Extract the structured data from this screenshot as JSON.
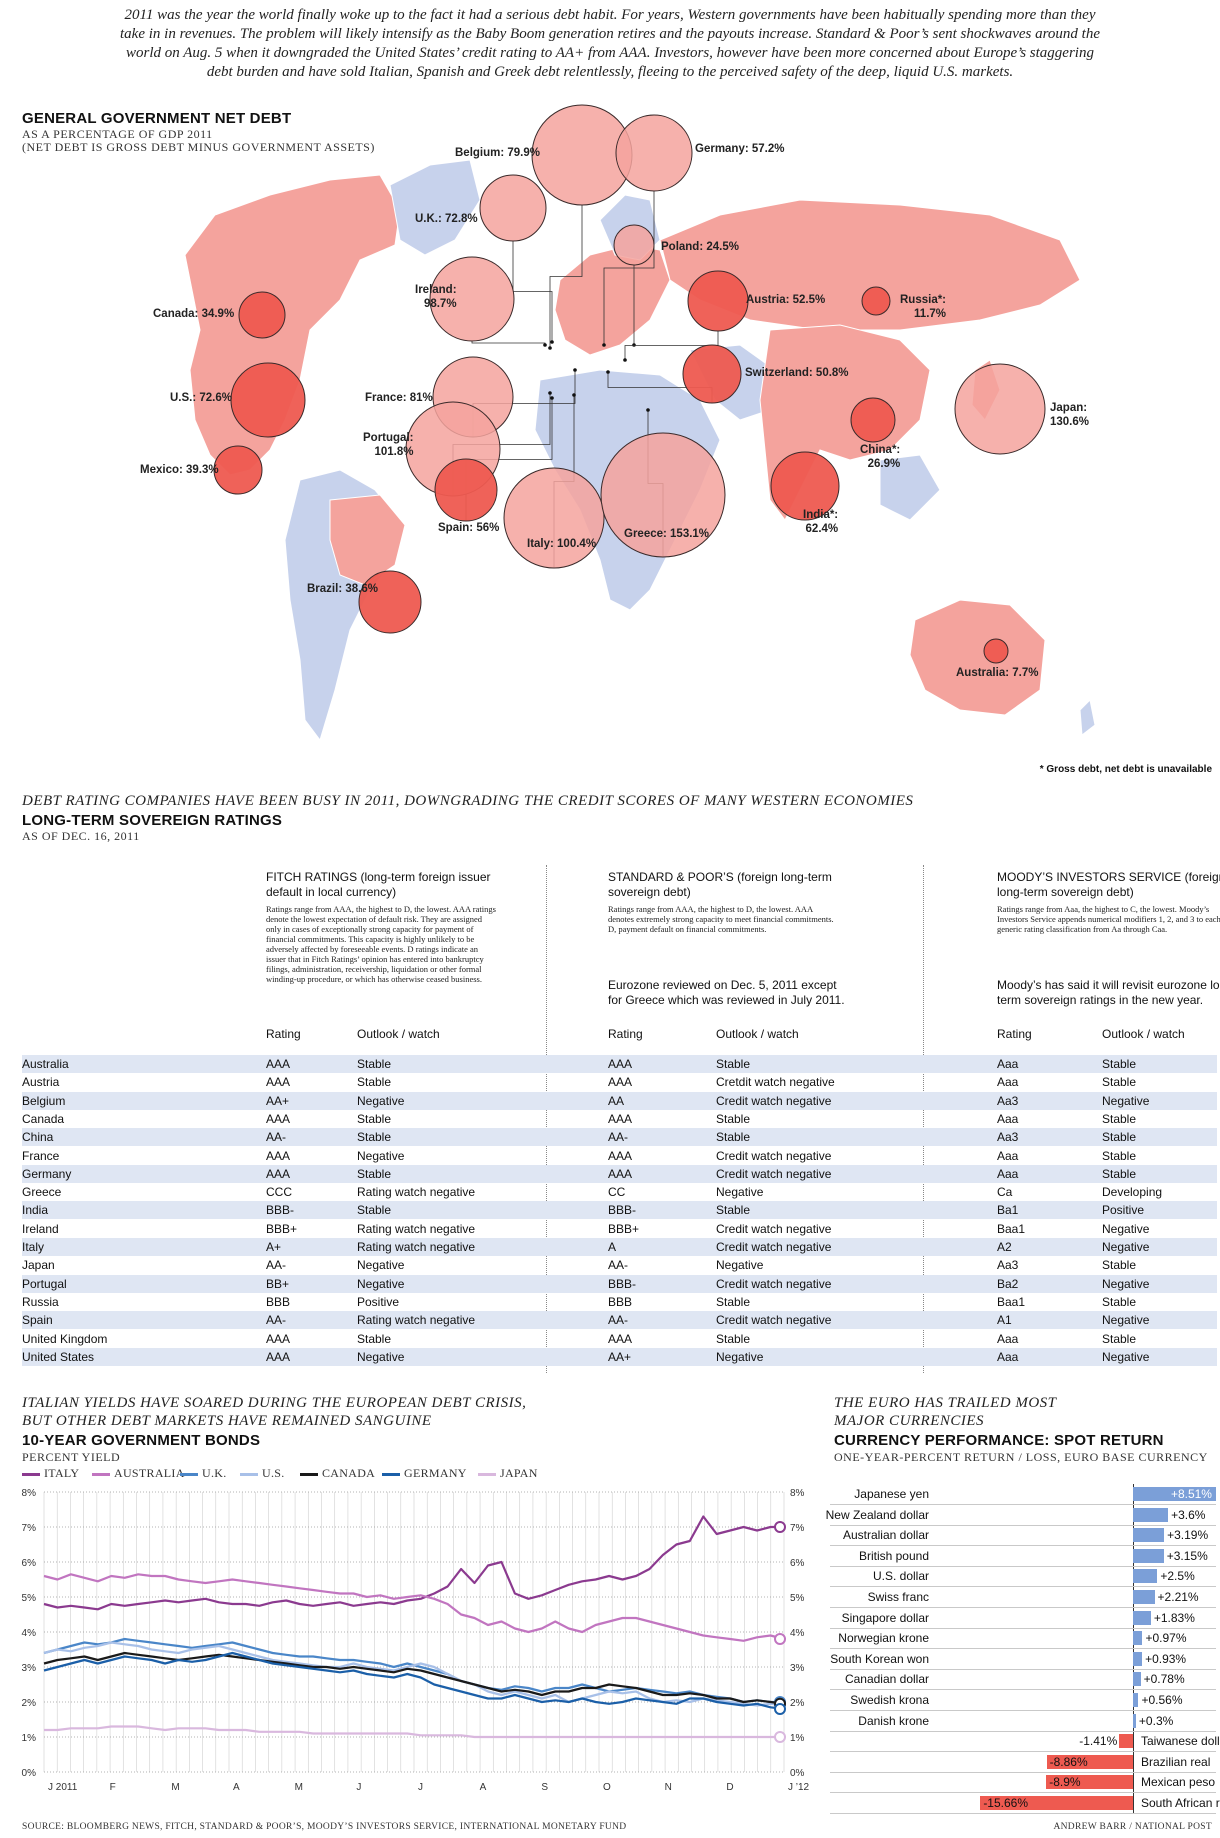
{
  "intro": "2011 was the year the world finally woke up to the fact it had a serious debt habit. For years, Western governments have been habitually spending more than they take in in revenues. The problem will likely intensify as the Baby Boom generation retires and the payouts increase. Standard & Poor’s sent shockwaves around the world on Aug. 5 when it downgraded the United States’ credit rating to AA+ from AAA. Investors, however have been more concerned about Europe’s staggering debt burden and have sold Italian, Spanish and Greek debt relentlessly, fleeing to the perceived safety of the deep, liquid U.S. markets.",
  "map": {
    "title": "GENERAL GOVERNMENT NET DEBT",
    "subtitle1": "AS A PERCENTAGE OF GDP 2011",
    "subtitle2": "(NET DEBT IS GROSS DEBT MINUS GOVERNMENT ASSETS)",
    "footnote": "* Gross debt, net debt is unavailable",
    "colors": {
      "bubble": "#f4a39d",
      "bubble_dark": "#ee5a50",
      "land_red": "#f4a39d",
      "land_blue": "#c7d2ec",
      "outline": "#3a2a2a"
    }
  },
  "chart_data": [
    {
      "type": "bubble-map",
      "title": "GENERAL GOVERNMENT NET DEBT",
      "unit": "% of GDP 2011",
      "values": [
        {
          "country": "Belgium",
          "label": "Belgium: 79.9%",
          "value": 79.9
        },
        {
          "country": "Germany",
          "label": "Germany: 57.2%",
          "value": 57.2
        },
        {
          "country": "U.K.",
          "label": "U.K.: 72.8%",
          "value": 72.8
        },
        {
          "country": "Poland",
          "label": "Poland: 24.5%",
          "value": 24.5
        },
        {
          "country": "Ireland",
          "label": "Ireland: 98.7%",
          "label_lines": [
            "Ireland:",
            "98.7%"
          ],
          "value": 98.7
        },
        {
          "country": "Austria",
          "label": "Austria: 52.5%",
          "value": 52.5
        },
        {
          "country": "Russia",
          "label": "Russia*: 11.7%",
          "label_lines": [
            "Russia*:",
            "11.7%"
          ],
          "value": 11.7
        },
        {
          "country": "Canada",
          "label": "Canada: 34.9%",
          "value": 34.9
        },
        {
          "country": "Switzerland",
          "label": "Switzerland: 50.8%",
          "value": 50.8
        },
        {
          "country": "U.S.",
          "label": "U.S.: 72.6%",
          "value": 72.6
        },
        {
          "country": "France",
          "label": "France: 81%",
          "value": 81
        },
        {
          "country": "Japan",
          "label": "Japan: 130.6%",
          "label_lines": [
            "Japan:",
            "130.6%"
          ],
          "value": 130.6
        },
        {
          "country": "Portugal",
          "label": "Portugal: 101.8%",
          "label_lines": [
            "Portugal:",
            "101.8%"
          ],
          "value": 101.8
        },
        {
          "country": "China",
          "label": "China*: 26.9%",
          "label_lines": [
            "China*:",
            "26.9%"
          ],
          "value": 26.9
        },
        {
          "country": "Mexico",
          "label": "Mexico: 39.3%",
          "value": 39.3
        },
        {
          "country": "Spain",
          "label": "Spain: 56%",
          "value": 56
        },
        {
          "country": "Italy",
          "label": "Italy: 100.4%",
          "value": 100.4
        },
        {
          "country": "Greece",
          "label": "Greece: 153.1%",
          "value": 153.1
        },
        {
          "country": "India",
          "label": "India*: 62.4%",
          "label_lines": [
            "India*:",
            "62.4%"
          ],
          "value": 62.4
        },
        {
          "country": "Brazil",
          "label": "Brazil: 38.6%",
          "value": 38.6
        },
        {
          "country": "Australia",
          "label": "Australia: 7.7%",
          "value": 7.7
        }
      ]
    },
    {
      "type": "line",
      "kicker": [
        "ITALIAN YIELDS HAVE SOARED DURING THE EUROPEAN DEBT CRISIS,",
        "BUT OTHER DEBT MARKETS HAVE REMAINED SANGUINE"
      ],
      "title": "10-YEAR GOVERNMENT BONDS",
      "ylabel": "PERCENT YIELD",
      "ylim": [
        0,
        8
      ],
      "y_ticks": [
        "0%",
        "1%",
        "2%",
        "3%",
        "4%",
        "5%",
        "6%",
        "7%",
        "8%"
      ],
      "x_ticks": [
        "J 2011",
        "F",
        "M",
        "A",
        "M",
        "J",
        "J",
        "A",
        "S",
        "O",
        "N",
        "D",
        "J ’12"
      ],
      "grid": true,
      "series": [
        {
          "name": "ITALY",
          "color": "#8b3a8f",
          "values": [
            4.8,
            4.7,
            4.75,
            4.7,
            4.65,
            4.8,
            4.75,
            4.8,
            4.85,
            4.9,
            4.85,
            4.9,
            4.95,
            4.85,
            4.8,
            4.8,
            4.75,
            4.85,
            4.9,
            4.8,
            4.75,
            4.8,
            4.85,
            4.75,
            4.8,
            4.85,
            4.8,
            4.9,
            4.95,
            5.1,
            5.3,
            5.8,
            5.4,
            5.9,
            6.0,
            5.1,
            4.95,
            5.05,
            5.2,
            5.35,
            5.45,
            5.5,
            5.6,
            5.5,
            5.6,
            5.8,
            6.2,
            6.5,
            6.6,
            7.3,
            6.8,
            6.9,
            7.0,
            6.9,
            7.0,
            7.0
          ]
        },
        {
          "name": "AUSTRALIA",
          "color": "#c175c0",
          "values": [
            5.6,
            5.5,
            5.65,
            5.55,
            5.45,
            5.6,
            5.55,
            5.65,
            5.6,
            5.6,
            5.5,
            5.45,
            5.4,
            5.45,
            5.5,
            5.45,
            5.4,
            5.35,
            5.3,
            5.25,
            5.2,
            5.15,
            5.1,
            5.1,
            5.0,
            5.05,
            4.95,
            5.0,
            5.05,
            4.95,
            4.8,
            4.5,
            4.4,
            4.2,
            4.3,
            4.1,
            4.0,
            4.1,
            4.3,
            4.1,
            4.0,
            4.2,
            4.3,
            4.4,
            4.4,
            4.3,
            4.2,
            4.1,
            4.0,
            3.9,
            3.85,
            3.8,
            3.75,
            3.85,
            3.9,
            3.8
          ]
        },
        {
          "name": "U.K.",
          "color": "#4a86c8",
          "values": [
            3.4,
            3.5,
            3.6,
            3.7,
            3.65,
            3.7,
            3.8,
            3.75,
            3.7,
            3.65,
            3.6,
            3.55,
            3.6,
            3.65,
            3.7,
            3.6,
            3.5,
            3.4,
            3.35,
            3.3,
            3.3,
            3.25,
            3.2,
            3.2,
            3.15,
            3.1,
            3.0,
            3.1,
            3.0,
            2.9,
            2.8,
            2.6,
            2.5,
            2.4,
            2.35,
            2.45,
            2.4,
            2.3,
            2.4,
            2.4,
            2.5,
            2.4,
            2.3,
            2.35,
            2.4,
            2.35,
            2.3,
            2.25,
            2.3,
            2.2,
            2.15,
            2.1,
            2.0,
            2.05,
            2.0,
            2.0
          ]
        },
        {
          "name": "U.S.",
          "color": "#a8c0e8",
          "values": [
            3.4,
            3.5,
            3.45,
            3.55,
            3.6,
            3.7,
            3.65,
            3.6,
            3.5,
            3.45,
            3.4,
            3.5,
            3.55,
            3.6,
            3.5,
            3.4,
            3.3,
            3.2,
            3.15,
            3.1,
            3.05,
            3.0,
            3.0,
            3.1,
            3.0,
            2.95,
            2.9,
            3.0,
            3.1,
            3.0,
            2.8,
            2.6,
            2.5,
            2.3,
            2.2,
            2.3,
            2.2,
            2.1,
            2.2,
            2.0,
            2.1,
            2.2,
            2.3,
            2.25,
            2.3,
            2.1,
            2.0,
            2.05,
            2.0,
            2.1,
            2.05,
            2.0,
            1.95,
            1.9,
            1.95,
            1.9
          ]
        },
        {
          "name": "CANADA",
          "color": "#1a1a1a",
          "values": [
            3.1,
            3.2,
            3.25,
            3.3,
            3.2,
            3.3,
            3.4,
            3.35,
            3.3,
            3.25,
            3.2,
            3.25,
            3.3,
            3.35,
            3.3,
            3.25,
            3.2,
            3.15,
            3.1,
            3.05,
            3.0,
            3.0,
            2.95,
            3.0,
            2.95,
            2.9,
            2.85,
            2.95,
            2.9,
            2.8,
            2.7,
            2.6,
            2.5,
            2.4,
            2.3,
            2.35,
            2.3,
            2.2,
            2.3,
            2.3,
            2.4,
            2.4,
            2.5,
            2.45,
            2.4,
            2.3,
            2.2,
            2.2,
            2.25,
            2.2,
            2.1,
            2.1,
            2.0,
            2.05,
            2.0,
            1.95
          ]
        },
        {
          "name": "GERMANY",
          "color": "#1b5fa8",
          "values": [
            2.9,
            3.0,
            3.1,
            3.2,
            3.1,
            3.2,
            3.3,
            3.25,
            3.2,
            3.1,
            3.2,
            3.15,
            3.2,
            3.3,
            3.4,
            3.3,
            3.2,
            3.1,
            3.05,
            3.0,
            2.95,
            2.9,
            2.85,
            2.9,
            2.8,
            2.75,
            2.7,
            2.8,
            2.7,
            2.5,
            2.4,
            2.3,
            2.2,
            2.1,
            2.1,
            2.2,
            2.1,
            2.0,
            2.05,
            2.0,
            2.1,
            2.0,
            1.95,
            2.0,
            2.1,
            2.05,
            2.0,
            1.95,
            2.1,
            2.1,
            2.0,
            1.95,
            1.9,
            1.95,
            1.85,
            1.8
          ]
        },
        {
          "name": "JAPAN",
          "color": "#d9b8de",
          "values": [
            1.2,
            1.2,
            1.25,
            1.25,
            1.25,
            1.3,
            1.3,
            1.3,
            1.25,
            1.2,
            1.25,
            1.25,
            1.25,
            1.2,
            1.2,
            1.2,
            1.15,
            1.15,
            1.15,
            1.15,
            1.1,
            1.1,
            1.1,
            1.1,
            1.1,
            1.1,
            1.1,
            1.1,
            1.05,
            1.05,
            1.05,
            1.05,
            1.0,
            1.0,
            1.0,
            1.0,
            1.0,
            1.0,
            1.0,
            1.0,
            1.0,
            1.0,
            1.0,
            1.0,
            1.0,
            1.0,
            1.0,
            1.0,
            1.0,
            1.0,
            1.0,
            1.0,
            1.0,
            1.0,
            1.0,
            1.0
          ]
        }
      ]
    },
    {
      "type": "bar",
      "kicker": [
        "THE EURO HAS TRAILED MOST",
        "MAJOR CURRENCIES"
      ],
      "title": "CURRENCY PERFORMANCE: SPOT RETURN",
      "subtitle": "ONE-YEAR-PERCENT RETURN / LOSS, EURO BASE CURRENCY",
      "categories": [
        "Japanese yen",
        "New Zealand dollar",
        "Australian dollar",
        "British pound",
        "U.S. dollar",
        "Swiss franc",
        "Singapore dollar",
        "Norwegian krone",
        "South Korean won",
        "Canadian dollar",
        "Swedish krona",
        "Danish krone",
        "Taiwanese dollar",
        "Brazilian real",
        "Mexican peso",
        "South African rand"
      ],
      "values": [
        8.51,
        3.6,
        3.19,
        3.15,
        2.5,
        2.21,
        1.83,
        0.97,
        0.93,
        0.78,
        0.56,
        0.3,
        -1.41,
        -8.86,
        -8.9,
        -15.66
      ],
      "labels": [
        "+8.51%",
        "+3.6%",
        "+3.19%",
        "+3.15%",
        "+2.5%",
        "+2.21%",
        "+1.83%",
        "+0.97%",
        "+0.93%",
        "+0.78%",
        "+0.56%",
        "+0.3%",
        "-1.41%",
        "-8.86%",
        "-8.9%",
        "-15.66%"
      ],
      "colors": {
        "positive": "#7b9fd8",
        "negative": "#ee5a50"
      }
    }
  ],
  "ratings": {
    "kicker": "DEBT RATING COMPANIES HAVE BEEN BUSY IN 2011, DOWNGRADING THE CREDIT SCORES OF MANY WESTERN ECONOMIES",
    "title": "LONG-TERM SOVEREIGN RATINGS",
    "asof": "AS OF DEC. 16, 2011",
    "fitch": {
      "title": "FITCH RATINGS (long-term foreign issuer default in local currency)",
      "desc": "Ratings range from AAA, the highest to D, the lowest. AAA ratings denote the lowest expectation of default risk. They are assigned only in cases of exceptionally strong capacity for payment of financial commitments. This capacity is highly unlikely to be adversely affected by foreseeable events. D ratings indicate an issuer that in Fitch Ratings’ opinion has entered into bankruptcy filings, administration, receivership, liquidation or other formal winding-up procedure, or which has otherwise ceased business."
    },
    "sp": {
      "title": "STANDARD & POOR’S (foreign long-term sovereign debt)",
      "desc": "Ratings range from AAA, the highest to D, the lowest. AAA denotes extremely strong capacity to meet financial commitments. D, payment default on financial commitments.",
      "note": "Eurozone reviewed on Dec. 5, 2011 except for Greece which was reviewed in July 2011."
    },
    "moodys": {
      "title": "MOODY’S INVESTORS SERVICE (foreign long-term sovereign debt)",
      "desc": "Ratings range from Aaa, the highest to C, the lowest. Moody’s Investors Service appends numerical modifiers 1, 2, and 3 to each generic rating classification from Aa through Caa.",
      "note": "Moody’s has said it will revisit eurozone long-term sovereign ratings in the new year."
    },
    "col_rating": "Rating",
    "col_outlook": "Outlook / watch",
    "rows": [
      {
        "country": "Australia",
        "fr": "AAA",
        "fo": "Stable",
        "sr": "AAA",
        "so": "Stable",
        "mr": "Aaa",
        "mo": "Stable"
      },
      {
        "country": "Austria",
        "fr": "AAA",
        "fo": "Stable",
        "sr": "AAA",
        "so": "Cretdit watch negative",
        "mr": "Aaa",
        "mo": "Stable"
      },
      {
        "country": "Belgium",
        "fr": "AA+",
        "fo": "Negative",
        "sr": "AA",
        "so": "Credit watch negative",
        "mr": "Aa3",
        "mo": "Negative"
      },
      {
        "country": "Canada",
        "fr": "AAA",
        "fo": "Stable",
        "sr": "AAA",
        "so": "Stable",
        "mr": "Aaa",
        "mo": "Stable"
      },
      {
        "country": "China",
        "fr": "AA-",
        "fo": "Stable",
        "sr": "AA-",
        "so": "Stable",
        "mr": "Aa3",
        "mo": "Stable"
      },
      {
        "country": "France",
        "fr": "AAA",
        "fo": "Negative",
        "sr": "AAA",
        "so": "Credit watch negative",
        "mr": "Aaa",
        "mo": "Stable"
      },
      {
        "country": "Germany",
        "fr": "AAA",
        "fo": "Stable",
        "sr": "AAA",
        "so": "Credit watch negative",
        "mr": "Aaa",
        "mo": "Stable"
      },
      {
        "country": "Greece",
        "fr": "CCC",
        "fo": "Rating watch negative",
        "sr": "CC",
        "so": "Negative",
        "mr": "Ca",
        "mo": "Developing"
      },
      {
        "country": "India",
        "fr": "BBB-",
        "fo": "Stable",
        "sr": "BBB-",
        "so": "Stable",
        "mr": "Ba1",
        "mo": "Positive"
      },
      {
        "country": "Ireland",
        "fr": "BBB+",
        "fo": "Rating watch negative",
        "sr": "BBB+",
        "so": "Credit watch negative",
        "mr": "Baa1",
        "mo": "Negative"
      },
      {
        "country": "Italy",
        "fr": "A+",
        "fo": "Rating watch negative",
        "sr": "A",
        "so": "Credit watch negative",
        "mr": "A2",
        "mo": "Negative"
      },
      {
        "country": "Japan",
        "fr": "AA-",
        "fo": "Negative",
        "sr": "AA-",
        "so": "Negative",
        "mr": "Aa3",
        "mo": "Stable"
      },
      {
        "country": "Portugal",
        "fr": "BB+",
        "fo": "Negative",
        "sr": "BBB-",
        "so": "Credit watch negative",
        "mr": "Ba2",
        "mo": "Negative"
      },
      {
        "country": "Russia",
        "fr": "BBB",
        "fo": "Positive",
        "sr": "BBB",
        "so": "Stable",
        "mr": "Baa1",
        "mo": "Stable"
      },
      {
        "country": "Spain",
        "fr": "AA-",
        "fo": "Rating watch negative",
        "sr": "AA-",
        "so": "Credit watch negative",
        "mr": "A1",
        "mo": "Negative"
      },
      {
        "country": "United Kingdom",
        "fr": "AAA",
        "fo": "Stable",
        "sr": "AAA",
        "so": "Stable",
        "mr": "Aaa",
        "mo": "Stable"
      },
      {
        "country": "United States",
        "fr": "AAA",
        "fo": "Negative",
        "sr": "AA+",
        "so": "Negative",
        "mr": "Aaa",
        "mo": "Negative"
      }
    ]
  },
  "footer": {
    "source": "SOURCE: BLOOMBERG NEWS, FITCH, STANDARD & POOR’S, MOODY’S INVESTORS SERVICE, INTERNATIONAL MONETARY FUND",
    "credit": "ANDREW BARR / NATIONAL POST"
  }
}
